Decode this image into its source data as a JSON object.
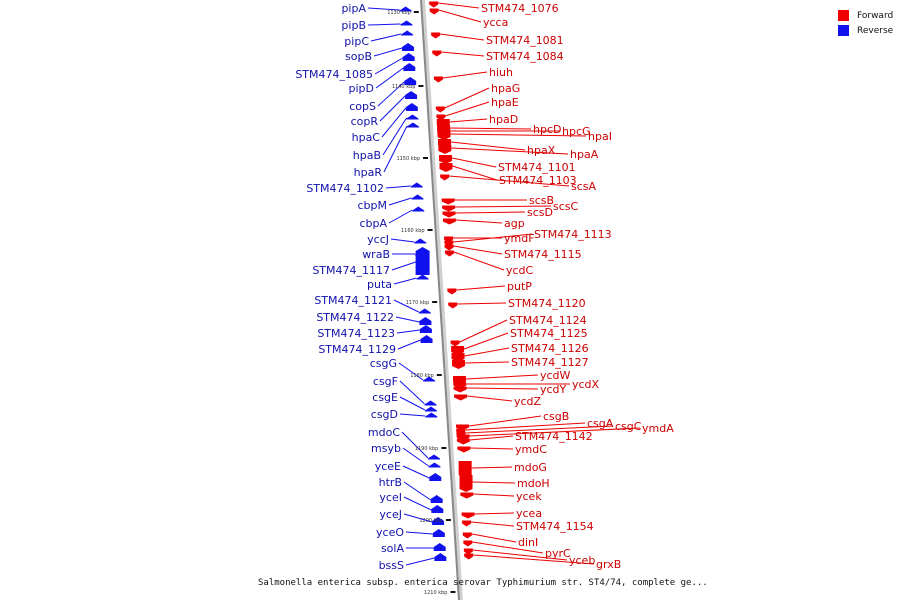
{
  "title": "Salmonella enterica subsp. enterica serovar Typhimurium str. ST4/74, complete ge...",
  "legend": [
    {
      "label": "Forward",
      "color": "#ee0000"
    },
    {
      "label": "Reverse",
      "color": "#1111ee"
    }
  ],
  "ticks": [
    "1130 kbp",
    "1140 kbp",
    "1150 kbp",
    "1160 kbp",
    "1170 kbp",
    "1180 kbp",
    "1190 kbp",
    "1200 kbp",
    "1210 kbp"
  ],
  "forward_genes": [
    "STM474_1076",
    "ycca",
    "STM474_1081",
    "STM474_1084",
    "hiuh",
    "hpaG",
    "hpaE",
    "hpaD",
    "hpcD",
    "hpcG",
    "hpaI",
    "hpaX",
    "hpaA",
    "STM474_1101",
    "STM474_1103",
    "scsA",
    "scsB",
    "scsC",
    "scsD",
    "agp",
    "ymdF",
    "STM474_1113",
    "STM474_1115",
    "ycdC",
    "putP",
    "STM474_1120",
    "STM474_1124",
    "STM474_1125",
    "STM474_1126",
    "STM474_1127",
    "ycdW",
    "ycdX",
    "ycdY",
    "ycdZ",
    "csgB",
    "csgA",
    "csgC",
    "ymdA",
    "STM474_1142",
    "ymdC",
    "mdoG",
    "mdoH",
    "ycek",
    "ycea",
    "STM474_1154",
    "dinI",
    "pyrC",
    "yceb",
    "grxB"
  ],
  "reverse_genes": [
    "pipA",
    "pipB",
    "pipC",
    "sopB",
    "STM474_1085",
    "pipD",
    "copS",
    "copR",
    "hpaC",
    "hpaB",
    "hpaR",
    "STM474_1102",
    "cbpM",
    "cbpA",
    "yccJ",
    "wraB",
    "STM474_1117",
    "puta",
    "STM474_1121",
    "STM474_1122",
    "STM474_1123",
    "STM474_1129",
    "csgG",
    "csgF",
    "csgE",
    "csgD",
    "mdoC",
    "msyb",
    "yceE",
    "htrB",
    "yceI",
    "yceJ",
    "yceO",
    "solA",
    "bssS"
  ]
}
